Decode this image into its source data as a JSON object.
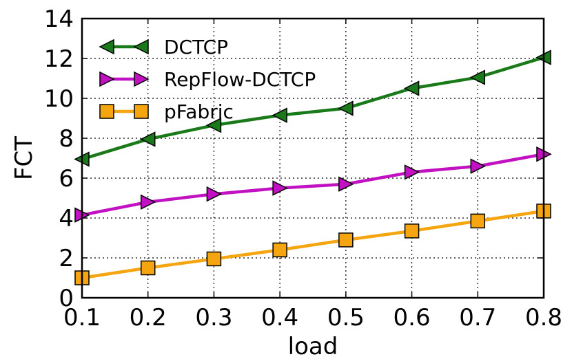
{
  "chart_data": {
    "type": "line",
    "title": "",
    "xlabel": "load",
    "ylabel": "FCT",
    "x": [
      0.1,
      0.2,
      0.3,
      0.4,
      0.5,
      0.6,
      0.7,
      0.8
    ],
    "xlim": [
      0.1,
      0.8
    ],
    "ylim": [
      0,
      14
    ],
    "xticks": [
      "0.1",
      "0.2",
      "0.3",
      "0.4",
      "0.5",
      "0.6",
      "0.7",
      "0.8"
    ],
    "yticks": [
      "0",
      "2",
      "4",
      "6",
      "8",
      "10",
      "12",
      "14"
    ],
    "grid": true,
    "legend_position": "top-left",
    "series": [
      {
        "name": "DCTCP",
        "color": "#1a7a1a",
        "marker": "triangle-left",
        "values": [
          6.95,
          7.95,
          8.65,
          9.15,
          9.5,
          10.5,
          11.05,
          12.05
        ]
      },
      {
        "name": "RepFlow-DCTCP",
        "color": "#c211c2",
        "marker": "triangle-right",
        "values": [
          4.15,
          4.8,
          5.2,
          5.5,
          5.7,
          6.3,
          6.6,
          7.2
        ]
      },
      {
        "name": "pFabric",
        "color": "#f5a50f",
        "marker": "square",
        "values": [
          1.0,
          1.5,
          1.95,
          2.4,
          2.9,
          3.35,
          3.85,
          4.35
        ]
      }
    ]
  }
}
